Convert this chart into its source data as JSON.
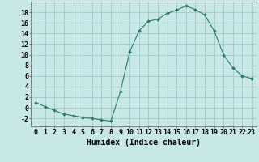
{
  "x": [
    0,
    1,
    2,
    3,
    4,
    5,
    6,
    7,
    8,
    9,
    10,
    11,
    12,
    13,
    14,
    15,
    16,
    17,
    18,
    19,
    20,
    21,
    22,
    23
  ],
  "y": [
    1,
    0.2,
    -0.5,
    -1.2,
    -1.5,
    -1.8,
    -2.0,
    -2.3,
    -2.5,
    3.0,
    10.5,
    14.5,
    16.3,
    16.7,
    17.8,
    18.4,
    19.2,
    18.5,
    17.5,
    14.5,
    10.0,
    7.5,
    6.0,
    5.5
  ],
  "line_color": "#2a7a6a",
  "marker": "D",
  "marker_size": 2,
  "bg_color": "#c8e8e8",
  "grid_color": "#a0c8c8",
  "xlabel": "Humidex (Indice chaleur)",
  "xlim": [
    -0.5,
    23.5
  ],
  "ylim": [
    -3.5,
    20.0
  ],
  "xtick_labels": [
    "0",
    "1",
    "2",
    "3",
    "4",
    "5",
    "6",
    "7",
    "8",
    "9",
    "10",
    "11",
    "12",
    "13",
    "14",
    "15",
    "16",
    "17",
    "18",
    "19",
    "20",
    "21",
    "22",
    "23"
  ],
  "ytick_values": [
    -2,
    0,
    2,
    4,
    6,
    8,
    10,
    12,
    14,
    16,
    18
  ],
  "xlabel_fontsize": 7,
  "tick_fontsize": 6
}
